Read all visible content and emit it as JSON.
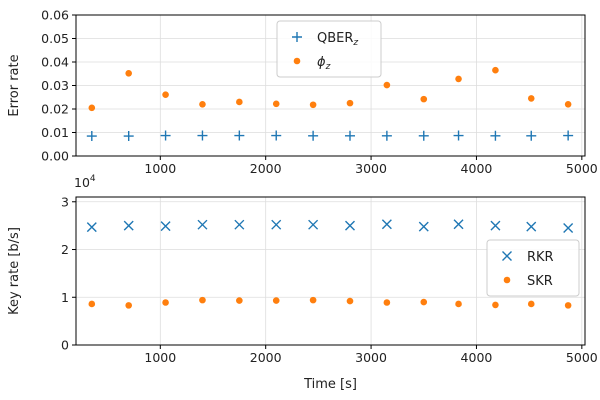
{
  "chart_data": [
    {
      "type": "scatter",
      "ylabel": "Error rate",
      "xlim": [
        200,
        5030
      ],
      "ylim": [
        0,
        0.06
      ],
      "yticks": [
        "0.00",
        "0.01",
        "0.02",
        "0.03",
        "0.04",
        "0.05",
        "0.06"
      ],
      "xticks": [
        "1000",
        "2000",
        "3000",
        "4000",
        "5000"
      ],
      "offset_text": {
        "base": "10",
        "exponent": "4"
      },
      "grid": true,
      "legend_position": "top-center",
      "series": [
        {
          "name": "QBER",
          "name_sub": "z",
          "marker": "plus",
          "color": "#1f77b4",
          "x": [
            350,
            700,
            1050,
            1400,
            1750,
            2100,
            2450,
            2800,
            3150,
            3500,
            3830,
            4180,
            4520,
            4870
          ],
          "y": [
            0.0085,
            0.0085,
            0.0087,
            0.0087,
            0.0087,
            0.0087,
            0.0086,
            0.0086,
            0.0086,
            0.0086,
            0.0087,
            0.0086,
            0.0086,
            0.0087
          ]
        },
        {
          "name": "ϕ",
          "name_sub": "z",
          "marker": "dot",
          "color": "#ff7f0e",
          "x": [
            350,
            700,
            1050,
            1400,
            1750,
            2100,
            2450,
            2800,
            3150,
            3500,
            3830,
            4180,
            4520,
            4870
          ],
          "y": [
            0.0205,
            0.0352,
            0.0261,
            0.022,
            0.023,
            0.0222,
            0.0218,
            0.0225,
            0.0302,
            0.0242,
            0.0328,
            0.0365,
            0.0245,
            0.022
          ]
        }
      ]
    },
    {
      "type": "scatter",
      "xlabel": "Time [s]",
      "ylabel": "Key rate [b/s]",
      "xlim": [
        200,
        5030
      ],
      "ylim": [
        0,
        3.1
      ],
      "yticks": [
        "0",
        "1",
        "2",
        "3"
      ],
      "xticks": [
        "1000",
        "2000",
        "3000",
        "4000",
        "5000"
      ],
      "grid": true,
      "legend_position": "center-right",
      "series": [
        {
          "name": "RKR",
          "marker": "x",
          "color": "#1f77b4",
          "x": [
            350,
            700,
            1050,
            1400,
            1750,
            2100,
            2450,
            2800,
            3150,
            3500,
            3830,
            4180,
            4520,
            4870
          ],
          "y": [
            2.47,
            2.5,
            2.49,
            2.52,
            2.52,
            2.52,
            2.52,
            2.5,
            2.53,
            2.48,
            2.53,
            2.5,
            2.48,
            2.45
          ]
        },
        {
          "name": "SKR",
          "marker": "dot",
          "color": "#ff7f0e",
          "x": [
            350,
            700,
            1050,
            1400,
            1750,
            2100,
            2450,
            2800,
            3150,
            3500,
            3830,
            4180,
            4520,
            4870
          ],
          "y": [
            0.86,
            0.83,
            0.89,
            0.94,
            0.93,
            0.93,
            0.94,
            0.92,
            0.89,
            0.9,
            0.86,
            0.84,
            0.86,
            0.83
          ]
        }
      ]
    }
  ]
}
